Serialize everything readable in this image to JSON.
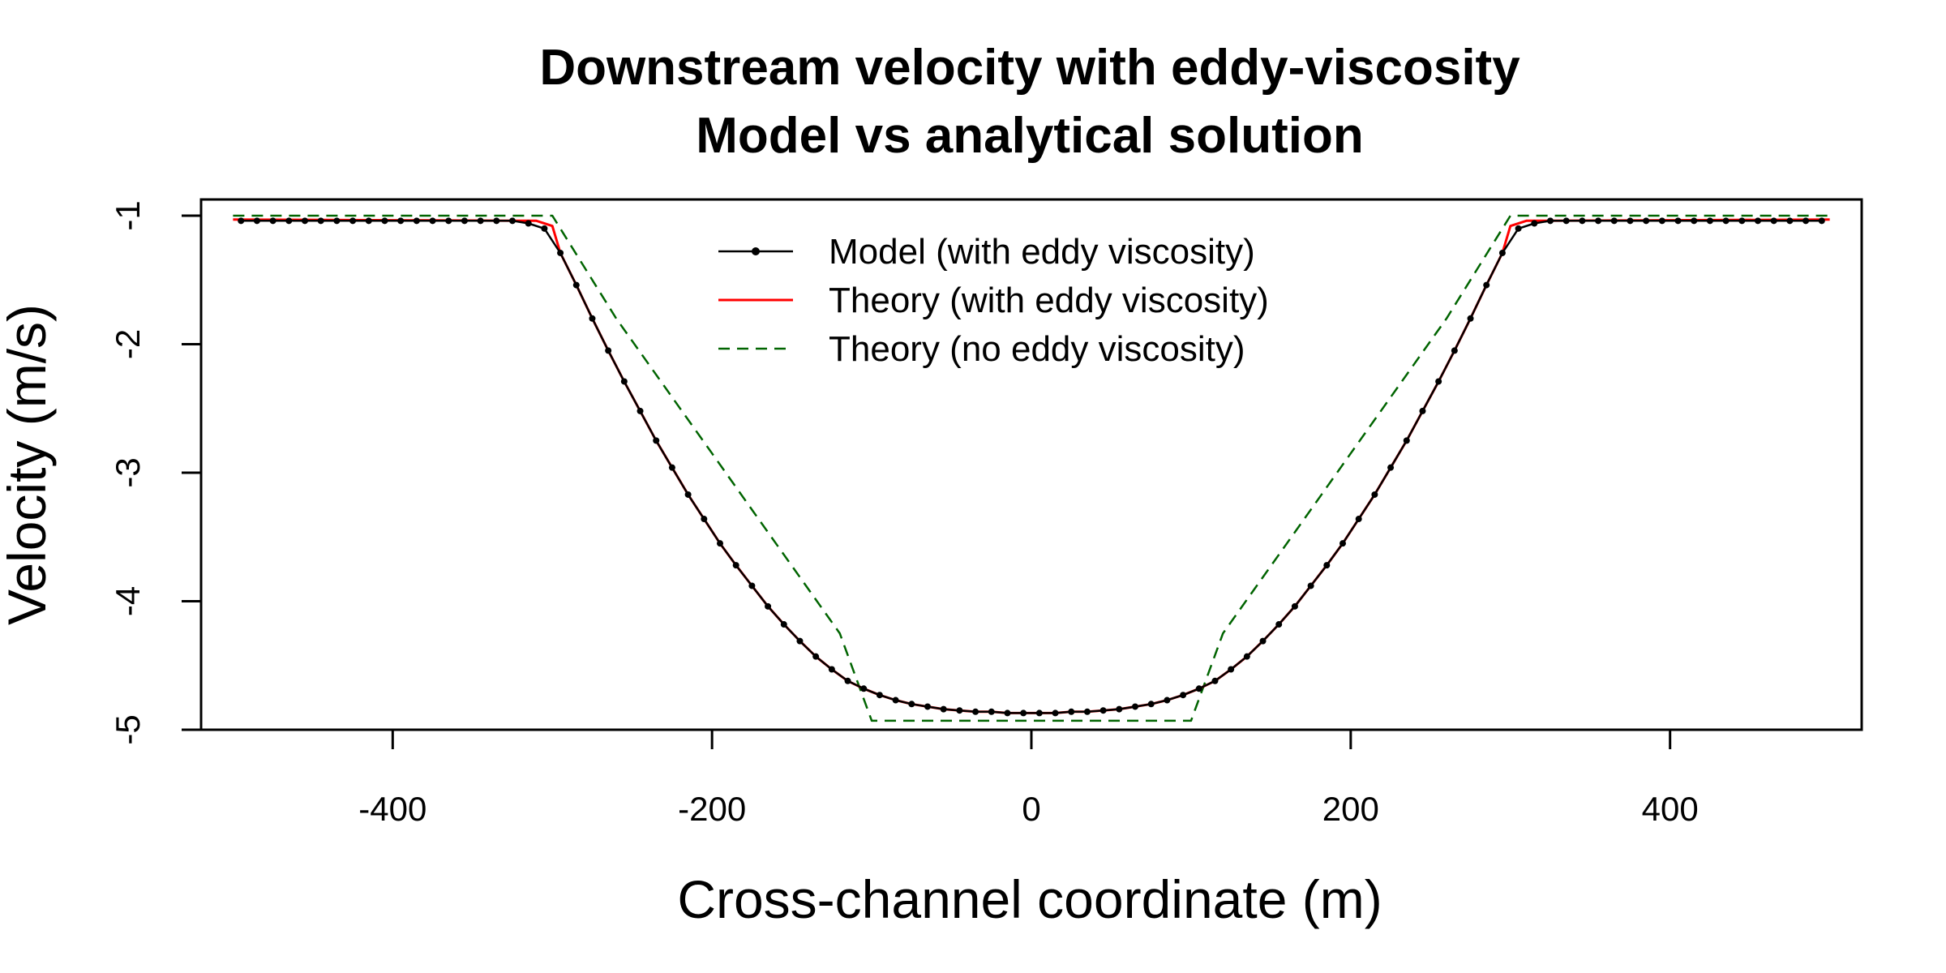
{
  "chart_data": {
    "type": "line",
    "title": "Downstream velocity with eddy-viscosity",
    "subtitle": "Model vs analytical solution",
    "xlabel": "Cross-channel coordinate (m)",
    "ylabel": "Velocity (m/s)",
    "xlim": [
      -520,
      520
    ],
    "ylim": [
      -5,
      -1
    ],
    "x_ticks": [
      -400,
      -200,
      0,
      200,
      400
    ],
    "x_tick_labels": [
      "-400",
      "-200",
      "0",
      "200",
      "400"
    ],
    "y_ticks": [
      -1,
      -2,
      -3,
      -4,
      -5
    ],
    "y_tick_labels": [
      "-1",
      "-2",
      "-3",
      "-4",
      "-5"
    ],
    "grid": false,
    "legend_position": "top-center",
    "series": [
      {
        "name": "Model (with eddy viscosity)",
        "color": "#000000",
        "style": "line-points",
        "x": [
          -495,
          -485,
          -475,
          -465,
          -455,
          -445,
          -435,
          -425,
          -415,
          -405,
          -395,
          -385,
          -375,
          -365,
          -355,
          -345,
          -335,
          -325,
          -315,
          -305,
          -295,
          -285,
          -275,
          -265,
          -255,
          -245,
          -235,
          -225,
          -215,
          -205,
          -195,
          -185,
          -175,
          -165,
          -155,
          -145,
          -135,
          -125,
          -115,
          -105,
          -95,
          -85,
          -75,
          -65,
          -55,
          -45,
          -35,
          -25,
          -15,
          -5,
          5,
          15,
          25,
          35,
          45,
          55,
          65,
          75,
          85,
          95,
          105,
          115,
          125,
          135,
          145,
          155,
          165,
          175,
          185,
          195,
          205,
          215,
          225,
          235,
          245,
          255,
          265,
          275,
          285,
          295,
          305,
          315,
          325,
          335,
          345,
          355,
          365,
          375,
          385,
          395,
          405,
          415,
          425,
          435,
          445,
          455,
          465,
          475,
          485,
          495
        ],
        "y": [
          -1.04,
          -1.04,
          -1.04,
          -1.04,
          -1.04,
          -1.04,
          -1.04,
          -1.04,
          -1.04,
          -1.04,
          -1.04,
          -1.04,
          -1.04,
          -1.04,
          -1.04,
          -1.04,
          -1.04,
          -1.04,
          -1.06,
          -1.1,
          -1.29,
          -1.54,
          -1.8,
          -2.05,
          -2.29,
          -2.52,
          -2.75,
          -2.96,
          -3.17,
          -3.36,
          -3.55,
          -3.72,
          -3.88,
          -4.04,
          -4.18,
          -4.31,
          -4.43,
          -4.53,
          -4.62,
          -4.68,
          -4.73,
          -4.77,
          -4.8,
          -4.82,
          -4.84,
          -4.85,
          -4.86,
          -4.86,
          -4.87,
          -4.87,
          -4.87,
          -4.87,
          -4.86,
          -4.86,
          -4.85,
          -4.84,
          -4.82,
          -4.8,
          -4.77,
          -4.73,
          -4.68,
          -4.62,
          -4.53,
          -4.43,
          -4.31,
          -4.18,
          -4.04,
          -3.88,
          -3.72,
          -3.55,
          -3.36,
          -3.17,
          -2.96,
          -2.75,
          -2.52,
          -2.29,
          -2.05,
          -1.8,
          -1.54,
          -1.29,
          -1.1,
          -1.06,
          -1.04,
          -1.04,
          -1.04,
          -1.04,
          -1.04,
          -1.04,
          -1.04,
          -1.04,
          -1.04,
          -1.04,
          -1.04,
          -1.04,
          -1.04,
          -1.04,
          -1.04,
          -1.04,
          -1.04,
          -1.04
        ]
      },
      {
        "name": "Theory (with eddy viscosity)",
        "color": "#ff0000",
        "style": "solid",
        "x": [
          -500,
          -310,
          -300,
          -295,
          -285,
          -275,
          -265,
          -255,
          -245,
          -235,
          -225,
          -215,
          -205,
          -195,
          -185,
          -175,
          -165,
          -155,
          -145,
          -135,
          -125,
          -115,
          -105,
          -95,
          -85,
          -75,
          -65,
          -55,
          -45,
          -35,
          -25,
          -15,
          -5,
          5,
          15,
          25,
          35,
          45,
          55,
          65,
          75,
          85,
          95,
          105,
          115,
          125,
          135,
          145,
          155,
          165,
          175,
          185,
          195,
          205,
          215,
          225,
          235,
          245,
          255,
          265,
          275,
          285,
          295,
          300,
          310,
          500
        ],
        "y": [
          -1.03,
          -1.04,
          -1.08,
          -1.29,
          -1.54,
          -1.8,
          -2.05,
          -2.29,
          -2.52,
          -2.75,
          -2.96,
          -3.17,
          -3.36,
          -3.55,
          -3.72,
          -3.88,
          -4.04,
          -4.18,
          -4.31,
          -4.43,
          -4.53,
          -4.62,
          -4.68,
          -4.73,
          -4.77,
          -4.8,
          -4.82,
          -4.84,
          -4.85,
          -4.86,
          -4.86,
          -4.87,
          -4.87,
          -4.87,
          -4.87,
          -4.86,
          -4.86,
          -4.85,
          -4.84,
          -4.82,
          -4.8,
          -4.77,
          -4.73,
          -4.68,
          -4.62,
          -4.53,
          -4.43,
          -4.31,
          -4.18,
          -4.04,
          -3.88,
          -3.72,
          -3.55,
          -3.36,
          -3.17,
          -2.96,
          -2.75,
          -2.52,
          -2.29,
          -2.05,
          -1.8,
          -1.54,
          -1.29,
          -1.08,
          -1.04,
          -1.03
        ]
      },
      {
        "name": "Theory (no eddy viscosity)",
        "color": "#006400",
        "style": "dashed",
        "x": [
          -500,
          -300,
          -280,
          -260,
          -240,
          -220,
          -200,
          -180,
          -160,
          -140,
          -120,
          -100,
          100,
          120,
          140,
          160,
          180,
          200,
          220,
          240,
          260,
          280,
          300,
          500
        ],
        "y": [
          -1.0,
          -1.0,
          -1.4,
          -1.8,
          -2.15,
          -2.5,
          -2.85,
          -3.2,
          -3.55,
          -3.9,
          -4.25,
          -4.93,
          -4.93,
          -4.25,
          -3.9,
          -3.55,
          -3.2,
          -2.85,
          -2.5,
          -2.15,
          -1.8,
          -1.4,
          -1.0,
          -1.0
        ]
      }
    ]
  }
}
